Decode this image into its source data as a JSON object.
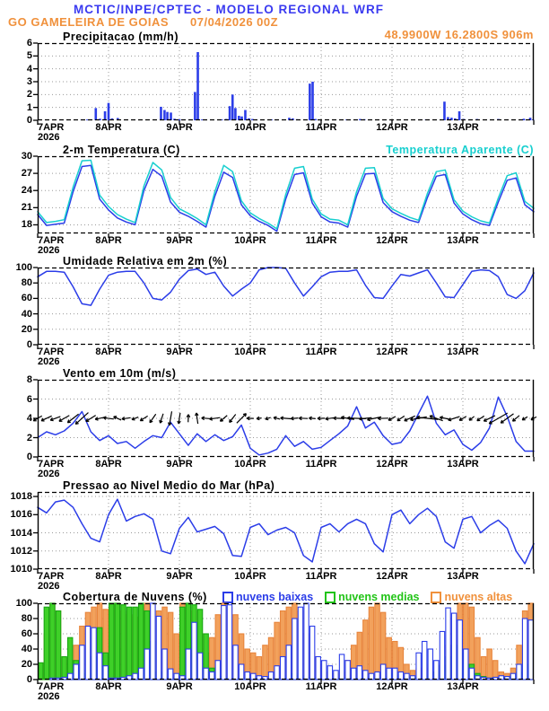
{
  "header": {
    "title": "MCTIC/INPE/CPTEC - MODELO REGIONAL WRF",
    "station": "GO GAMELEIRA DE GOIAS",
    "run_datetime": "07/04/2026 00Z",
    "coordinates": "48.9900W 16.2800S 906m"
  },
  "colors": {
    "header_blue": "#3a3af0",
    "orange": "#f0913c",
    "line_blue": "#2b3de8",
    "cyan": "#17cfcf",
    "green": "#22c417",
    "grid_gray": "#9a9a9a",
    "axis_black": "#000000"
  },
  "x_axis": {
    "day_labels": [
      "7APR",
      "8APR",
      "9APR",
      "10APR",
      "11APR",
      "12APR",
      "13APR"
    ],
    "year_label": "2026",
    "span_days": 7
  },
  "chart_data": [
    {
      "id": "precipitation",
      "type": "bar",
      "title": "Precipitacao (mm/h)",
      "ylim": [
        0,
        6
      ],
      "yticks": [
        0,
        1,
        2,
        3,
        4,
        5,
        6
      ],
      "bar_color": "#2b3de8",
      "bars": [
        [
          0.62,
          0.05
        ],
        [
          0.7,
          0.06
        ],
        [
          0.82,
          0.95
        ],
        [
          0.88,
          0.12
        ],
        [
          0.95,
          0.7
        ],
        [
          1.0,
          1.35
        ],
        [
          1.05,
          0.15
        ],
        [
          1.13,
          0.18
        ],
        [
          1.45,
          0.06
        ],
        [
          1.74,
          1.05
        ],
        [
          1.79,
          0.8
        ],
        [
          1.83,
          0.65
        ],
        [
          1.88,
          0.6
        ],
        [
          1.93,
          0.12
        ],
        [
          2.0,
          0.08
        ],
        [
          2.07,
          0.06
        ],
        [
          2.22,
          2.2
        ],
        [
          2.26,
          5.3
        ],
        [
          2.32,
          0.06
        ],
        [
          2.6,
          0.06
        ],
        [
          2.66,
          0.1
        ],
        [
          2.71,
          1.1
        ],
        [
          2.75,
          2.0
        ],
        [
          2.79,
          0.95
        ],
        [
          2.84,
          0.35
        ],
        [
          2.88,
          0.3
        ],
        [
          2.93,
          0.8
        ],
        [
          2.98,
          0.15
        ],
        [
          3.03,
          0.1
        ],
        [
          3.3,
          0.06
        ],
        [
          3.55,
          0.2
        ],
        [
          3.6,
          0.15
        ],
        [
          3.66,
          0.08
        ],
        [
          3.84,
          2.85
        ],
        [
          3.88,
          3.0
        ],
        [
          3.92,
          0.1
        ],
        [
          4.36,
          0.06
        ],
        [
          4.55,
          0.1
        ],
        [
          4.61,
          0.08
        ],
        [
          4.7,
          0.06
        ],
        [
          5.0,
          0.06
        ],
        [
          5.48,
          0.06
        ],
        [
          5.6,
          0.06
        ],
        [
          5.74,
          1.45
        ],
        [
          5.79,
          0.25
        ],
        [
          5.84,
          0.2
        ],
        [
          5.89,
          0.15
        ],
        [
          5.95,
          0.7
        ],
        [
          6.01,
          0.1
        ],
        [
          6.2,
          0.1
        ],
        [
          6.5,
          0.1
        ],
        [
          6.86,
          0.12
        ],
        [
          6.95,
          0.2
        ],
        [
          6.99,
          0.06
        ]
      ]
    },
    {
      "id": "temperature",
      "type": "line",
      "title": "2-m Temperatura (C)",
      "legend_label": "Temperatura Aparente (C)",
      "ylim": [
        16.5,
        30
      ],
      "yticks": [
        18,
        21,
        24,
        27,
        30
      ],
      "step_days": 0.125,
      "series": [
        {
          "name": "2-m Temperatura (C)",
          "color": "#2b3de8",
          "values": [
            19.8,
            17.9,
            18.1,
            18.3,
            23.8,
            28.2,
            28.4,
            22.5,
            20.6,
            19.2,
            18.5,
            18.0,
            24.0,
            27.7,
            26.5,
            22.0,
            20.2,
            19.5,
            18.6,
            17.6,
            23.0,
            27.2,
            26.3,
            21.5,
            19.6,
            18.6,
            17.9,
            16.9,
            22.5,
            26.8,
            27.1,
            21.8,
            19.4,
            18.5,
            18.3,
            17.6,
            23.0,
            26.9,
            27.0,
            21.9,
            20.3,
            19.5,
            18.8,
            18.4,
            22.8,
            26.5,
            26.8,
            21.8,
            19.9,
            18.9,
            18.2,
            17.9,
            22.0,
            25.8,
            26.2,
            21.5,
            20.3
          ]
        },
        {
          "name": "Temperatura Aparente (C)",
          "color": "#17cfcf",
          "values": [
            20.3,
            18.4,
            18.6,
            18.9,
            24.6,
            29.2,
            29.3,
            23.2,
            21.2,
            19.8,
            19.0,
            18.4,
            24.8,
            28.9,
            27.6,
            22.8,
            20.8,
            20.0,
            19.1,
            18.0,
            23.8,
            28.4,
            27.3,
            22.2,
            20.1,
            19.1,
            18.3,
            17.3,
            23.3,
            27.9,
            28.2,
            22.5,
            19.9,
            19.0,
            18.8,
            18.0,
            23.8,
            27.9,
            28.0,
            22.6,
            20.8,
            20.0,
            19.3,
            18.8,
            23.5,
            27.3,
            27.6,
            22.4,
            20.4,
            19.4,
            18.7,
            18.3,
            22.7,
            26.6,
            27.1,
            22.1,
            20.9
          ]
        }
      ]
    },
    {
      "id": "humidity",
      "type": "line",
      "title": "Umidade Relativa em 2m (%)",
      "ylim": [
        0,
        100
      ],
      "yticks": [
        0,
        20,
        40,
        60,
        80,
        100
      ],
      "step_days": 0.125,
      "series": [
        {
          "name": "Umidade Relativa em 2m (%)",
          "color": "#2b3de8",
          "values": [
            88,
            95,
            95,
            94,
            75,
            53,
            51,
            72,
            90,
            94,
            95,
            95,
            80,
            60,
            58,
            68,
            85,
            96,
            98,
            91,
            94,
            76,
            63,
            72,
            80,
            97,
            100,
            100,
            99,
            80,
            63,
            75,
            88,
            94,
            95,
            95,
            97,
            77,
            61,
            60,
            76,
            91,
            89,
            93,
            97,
            80,
            62,
            61,
            78,
            95,
            97,
            96,
            88,
            65,
            60,
            70,
            93
          ]
        }
      ]
    },
    {
      "id": "wind",
      "type": "wind",
      "title": "Vento em 10m (m/s)",
      "ylim": [
        0,
        8
      ],
      "yticks": [
        0,
        2,
        4,
        6,
        8
      ],
      "step_days": 0.125,
      "arrow_baseline": 4,
      "series": [
        {
          "name": "Vento em 10m (m/s)",
          "color": "#2b3de8",
          "values": [
            2.0,
            2.6,
            2.3,
            2.7,
            3.5,
            4.7,
            2.6,
            1.7,
            2.2,
            1.4,
            1.6,
            0.9,
            1.6,
            2.2,
            2.0,
            3.6,
            2.4,
            1.2,
            2.4,
            1.6,
            2.3,
            1.7,
            2.1,
            3.3,
            0.9,
            0.2,
            0.4,
            0.8,
            2.2,
            1.1,
            1.6,
            0.8,
            1.0,
            1.7,
            2.4,
            3.2,
            5.2,
            3.0,
            3.6,
            2.2,
            1.3,
            1.5,
            2.7,
            4.5,
            6.3,
            3.5,
            2.3,
            2.8,
            1.3,
            0.7,
            1.5,
            3.0,
            6.2,
            4.2,
            1.6,
            0.6,
            0.6
          ]
        }
      ],
      "arrow_angles_deg": [
        150,
        155,
        160,
        150,
        142,
        138,
        148,
        168,
        188,
        205,
        172,
        158,
        148,
        125,
        108,
        100,
        98,
        272,
        262,
        185,
        172,
        140,
        128,
        315,
        182,
        172,
        162,
        195,
        185,
        175,
        182,
        186,
        178,
        172,
        182,
        190,
        182,
        174,
        168,
        178,
        152,
        146,
        156,
        170,
        186,
        200,
        192,
        162,
        150,
        142,
        146,
        154,
        150,
        144,
        140,
        148,
        152
      ]
    },
    {
      "id": "pressure",
      "type": "line",
      "title": "Pressao ao Nivel Medio do Mar (hPa)",
      "ylim": [
        1010,
        1018.5
      ],
      "yticks": [
        1010,
        1012,
        1014,
        1016,
        1018
      ],
      "step_days": 0.125,
      "series": [
        {
          "name": "Pressao ao Nivel Medio do Mar (hPa)",
          "color": "#2b3de8",
          "values": [
            1016.8,
            1016.2,
            1017.4,
            1017.6,
            1016.8,
            1015.0,
            1013.4,
            1013.0,
            1016.0,
            1017.7,
            1015.3,
            1015.8,
            1016.1,
            1015.5,
            1012.0,
            1011.7,
            1014.5,
            1015.7,
            1014.1,
            1014.4,
            1014.7,
            1013.9,
            1011.5,
            1011.4,
            1014.6,
            1015.0,
            1013.8,
            1014.3,
            1014.6,
            1014.0,
            1011.5,
            1010.8,
            1014.6,
            1015.0,
            1014.1,
            1015.0,
            1015.5,
            1015.0,
            1012.8,
            1011.9,
            1016.0,
            1016.5,
            1015.0,
            1016.0,
            1016.7,
            1015.8,
            1013.0,
            1012.3,
            1015.5,
            1015.8,
            1014.0,
            1014.8,
            1015.4,
            1014.5,
            1012.0,
            1010.6,
            1012.8
          ]
        }
      ]
    },
    {
      "id": "clouds",
      "type": "bars3",
      "title": "Cobertura de Nuvens (%)",
      "ylim": [
        0,
        100
      ],
      "yticks": [
        0,
        20,
        40,
        60,
        80,
        100
      ],
      "step_hours": 2,
      "series": [
        {
          "name": "nuvens baixas",
          "stroke": "#2b3de8",
          "fill": "#ffffff",
          "values": [
            0,
            0,
            2,
            2,
            3,
            8,
            20,
            45,
            70,
            68,
            35,
            18,
            2,
            2,
            3,
            5,
            8,
            15,
            40,
            100,
            83,
            40,
            14,
            8,
            5,
            40,
            75,
            35,
            15,
            10,
            25,
            97,
            98,
            45,
            20,
            10,
            8,
            5,
            4,
            10,
            18,
            30,
            45,
            80,
            95,
            100,
            70,
            30,
            25,
            18,
            12,
            33,
            25,
            15,
            18,
            12,
            8,
            10,
            20,
            15,
            15,
            10,
            8,
            5,
            35,
            50,
            40,
            25,
            63,
            94,
            87,
            78,
            40,
            15,
            5,
            3,
            2,
            3,
            5,
            4,
            8,
            20,
            80,
            78
          ]
        },
        {
          "name": "nuvens medias",
          "stroke": "#18a812",
          "fill": "#3fd028",
          "values": [
            22,
            95,
            100,
            90,
            30,
            55,
            25,
            12,
            8,
            30,
            68,
            35,
            100,
            100,
            98,
            95,
            95,
            100,
            90,
            50,
            10,
            3,
            2,
            2,
            95,
            100,
            98,
            92,
            60,
            15,
            8,
            4,
            2,
            2,
            2,
            2,
            2,
            2,
            2,
            2,
            2,
            3,
            5,
            8,
            5,
            3,
            2,
            2,
            2,
            2,
            2,
            2,
            2,
            2,
            3,
            3,
            2,
            2,
            4,
            8,
            8,
            5,
            3,
            3,
            2,
            4,
            6,
            10,
            18,
            30,
            45,
            40,
            35,
            20,
            8,
            4,
            2,
            2,
            2,
            3,
            5,
            10,
            20,
            45
          ]
        },
        {
          "name": "nuvens altas",
          "stroke": "#e8853c",
          "fill": "#f2a15c",
          "values": [
            20,
            60,
            100,
            90,
            28,
            25,
            45,
            70,
            88,
            95,
            100,
            92,
            95,
            100,
            90,
            85,
            82,
            95,
            100,
            98,
            90,
            95,
            88,
            60,
            100,
            95,
            90,
            60,
            35,
            55,
            85,
            100,
            95,
            85,
            60,
            40,
            35,
            30,
            45,
            55,
            75,
            90,
            95,
            100,
            90,
            60,
            35,
            20,
            20,
            10,
            8,
            10,
            25,
            45,
            62,
            78,
            95,
            100,
            88,
            55,
            50,
            42,
            20,
            12,
            15,
            20,
            15,
            10,
            20,
            45,
            80,
            100,
            100,
            95,
            55,
            30,
            40,
            25,
            10,
            8,
            15,
            45,
            90,
            100
          ]
        }
      ]
    }
  ]
}
